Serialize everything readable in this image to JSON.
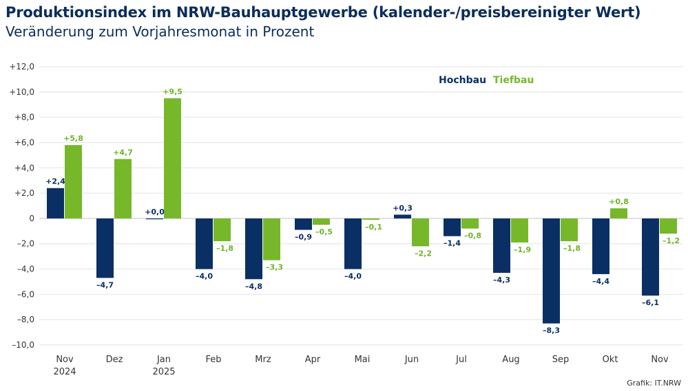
{
  "chart_data": {
    "type": "bar",
    "title": "Produktionsindex im NRW-Bauhauptgewerbe (kalender-/preisbereinigter Wert)",
    "subtitle": "Veränderung zum Vorjahresmonat in Prozent",
    "categories": [
      [
        "Nov",
        "2024"
      ],
      [
        "Dez",
        ""
      ],
      [
        "Jan",
        "2025"
      ],
      [
        "Feb",
        ""
      ],
      [
        "Mrz",
        ""
      ],
      [
        "Apr",
        ""
      ],
      [
        "Mai",
        ""
      ],
      [
        "Jun",
        ""
      ],
      [
        "Jul",
        ""
      ],
      [
        "Aug",
        ""
      ],
      [
        "Sep",
        ""
      ],
      [
        "Okt",
        ""
      ],
      [
        "Nov",
        ""
      ]
    ],
    "series": [
      {
        "name": "Hochbau",
        "color": "#0a2f64",
        "values": [
          2.4,
          -4.7,
          0.0,
          -4.0,
          -4.8,
          -0.9,
          -4.0,
          0.3,
          -1.4,
          -4.3,
          -8.3,
          -4.4,
          -6.1
        ],
        "labels": [
          "+2,4",
          "–4,7",
          "+0,0",
          "–4,0",
          "–4,8",
          "–0,9",
          "–4,0",
          "+0,3",
          "–1,4",
          "–4,3",
          "–8,3",
          "–4,4",
          "–6,1"
        ]
      },
      {
        "name": "Tiefbau",
        "color": "#76b82a",
        "values": [
          5.8,
          4.7,
          9.5,
          -1.8,
          -3.3,
          -0.5,
          -0.1,
          -2.2,
          -0.8,
          -1.9,
          -1.8,
          0.8,
          -1.2
        ],
        "labels": [
          "+5,8",
          "+4,7",
          "+9,5",
          "–1,8",
          "–3,3",
          "–0,5",
          "–0,1",
          "–2,2",
          "–0,8",
          "–1,9",
          "–1,8",
          "+0,8",
          "–1,2"
        ]
      }
    ],
    "ylim": [
      -10,
      12
    ],
    "yticks": [
      -10,
      -8,
      -6,
      -4,
      -2,
      0,
      2,
      4,
      6,
      8,
      10,
      12
    ],
    "ytick_labels": [
      "–10,0",
      "–8,0",
      "–6,0",
      "–4,0",
      "–2,0",
      "0",
      "+2,0",
      "+4,0",
      "+6,0",
      "+8,0",
      "+10,0",
      "+12,0"
    ],
    "grid": true,
    "legend": "top-center",
    "xlabel": "",
    "ylabel": ""
  },
  "source": "Grafik: IT.NRW"
}
